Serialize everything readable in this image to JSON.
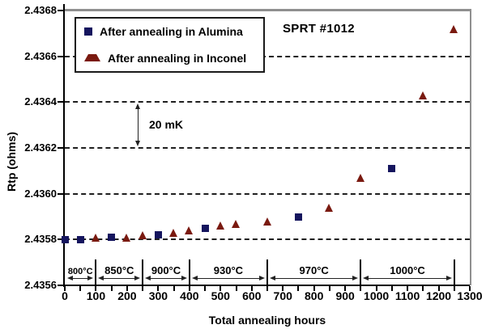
{
  "colors": {
    "alumina_marker": "#15155e",
    "inconel_marker": "#7a1a10",
    "grid_line": "#1f1f1f",
    "frame": "#8f8f8f",
    "axis": "#000000",
    "background": "#ffffff"
  },
  "chart_data": {
    "type": "scatter",
    "title": "",
    "xlabel": "Total annealing hours",
    "ylabel": "Rtp (ohms)",
    "xlim": [
      0,
      1300
    ],
    "ylim": [
      2.4356,
      2.4368
    ],
    "grid": "dashed horizontal gridlines",
    "legend_position": "top-left",
    "x_tick_labels": [
      "0",
      "100",
      "200",
      "300",
      "400",
      "500",
      "600",
      "700",
      "800",
      "900",
      "1000",
      "1100",
      "1200",
      "1300"
    ],
    "x_tick_values": [
      0,
      100,
      200,
      300,
      400,
      500,
      600,
      700,
      800,
      900,
      1000,
      1100,
      1200,
      1300
    ],
    "x_minor_tick_step": 50,
    "y_tick_labels": [
      "2.4356",
      "2.4358",
      "2.4360",
      "2.4362",
      "2.4364",
      "2.4366",
      "2.4368"
    ],
    "y_tick_values": [
      2.4356,
      2.4358,
      2.436,
      2.4362,
      2.4364,
      2.4366,
      2.4368
    ],
    "series": [
      {
        "name": "After annealing in Alumina",
        "marker": "square",
        "color": "#15155e",
        "points": [
          [
            0,
            2.4358
          ],
          [
            50,
            2.4358
          ],
          [
            150,
            2.43581
          ],
          [
            300,
            2.43582
          ],
          [
            450,
            2.43585
          ],
          [
            750,
            2.4359
          ],
          [
            1050,
            2.43611
          ]
        ]
      },
      {
        "name": "After annealing in Inconel",
        "marker": "triangle",
        "color": "#7a1a10",
        "points": [
          [
            100,
            2.43581
          ],
          [
            200,
            2.43581
          ],
          [
            250,
            2.43582
          ],
          [
            350,
            2.43583
          ],
          [
            400,
            2.43584
          ],
          [
            500,
            2.43586
          ],
          [
            550,
            2.43587
          ],
          [
            650,
            2.43588
          ],
          [
            850,
            2.43594
          ],
          [
            950,
            2.43607
          ],
          [
            1150,
            2.43643
          ],
          [
            1250,
            2.43672
          ]
        ]
      }
    ],
    "annotations": {
      "sprt": "SPRT #1012",
      "span_label": "20 mK",
      "span_from": 2.4362,
      "span_to": 2.4364,
      "span_x_hours": 234
    },
    "temperature_bands": [
      {
        "label": "800°C",
        "from": 0,
        "to": 100,
        "small": true
      },
      {
        "label": "850°C",
        "from": 100,
        "to": 250,
        "small": false
      },
      {
        "label": "900°C",
        "from": 250,
        "to": 400,
        "small": false
      },
      {
        "label": "930°C",
        "from": 400,
        "to": 650,
        "small": false
      },
      {
        "label": "970°C",
        "from": 650,
        "to": 950,
        "small": false
      },
      {
        "label": "1000°C",
        "from": 950,
        "to": 1250,
        "small": false
      }
    ]
  }
}
